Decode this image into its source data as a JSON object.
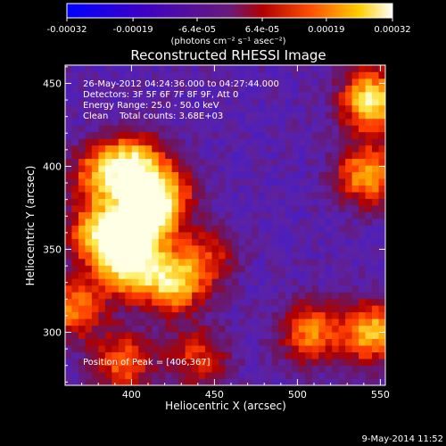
{
  "colorbar": {
    "tick_labels": [
      "-0.00032",
      "-0.00019",
      "-6.4e-05",
      "6.4e-05",
      "0.00019",
      "0.00032"
    ],
    "unit_label": "(photons cm⁻² s⁻¹ asec⁻²)"
  },
  "chart_data": {
    "type": "heatmap",
    "title": "Reconstructed RHESSI Image",
    "xlabel": "Heliocentric X (arcsec)",
    "ylabel": "Heliocentric Y (arcsec)",
    "xlim": [
      360,
      553
    ],
    "ylim": [
      268,
      461
    ],
    "xticks": [
      400,
      450,
      500,
      550
    ],
    "yticks": [
      300,
      350,
      400,
      450
    ],
    "colorbar_range": [
      -0.00032,
      0.00032
    ],
    "colormap": "blue-purple-red-yellow-white",
    "annotations": {
      "time_range": "26-May-2012 04:24:36.000 to 04:27:44.000",
      "detectors": "Detectors: 3F 5F 6F 7F 8F 9F, Att 0",
      "energy": "Energy Range: 25.0 - 50.0 keV",
      "method": "Clean    Total counts: 3.68E+03",
      "peak": "Position of Peak = [406,367]"
    },
    "peak_position": [
      406,
      367
    ],
    "bright_regions": [
      {
        "x": 406,
        "y": 367,
        "level": 1.0
      },
      {
        "x": 398,
        "y": 340,
        "level": 0.85
      },
      {
        "x": 380,
        "y": 360,
        "level": 0.75
      },
      {
        "x": 401,
        "y": 401,
        "level": 0.8
      },
      {
        "x": 420,
        "y": 384,
        "level": 0.6
      },
      {
        "x": 425,
        "y": 330,
        "level": 0.75
      },
      {
        "x": 380,
        "y": 395,
        "level": 0.55
      },
      {
        "x": 545,
        "y": 440,
        "level": 0.9
      },
      {
        "x": 542,
        "y": 395,
        "level": 0.7
      },
      {
        "x": 545,
        "y": 300,
        "level": 0.75
      },
      {
        "x": 508,
        "y": 300,
        "level": 0.6
      },
      {
        "x": 395,
        "y": 282,
        "level": 0.55
      },
      {
        "x": 440,
        "y": 285,
        "level": 0.45
      },
      {
        "x": 445,
        "y": 345,
        "level": 0.4
      },
      {
        "x": 365,
        "y": 315,
        "level": 0.6
      }
    ]
  },
  "footer": {
    "date": "9-May-2014 11:52"
  }
}
